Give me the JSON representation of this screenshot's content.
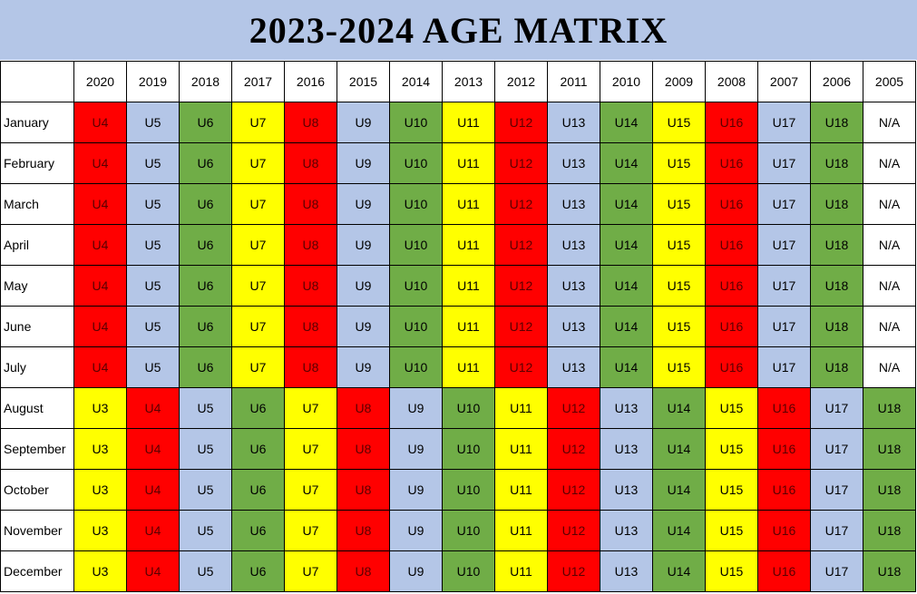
{
  "title": "2023-2024 AGE MATRIX",
  "colors": {
    "red": "#ff0000",
    "blue": "#b4c6e7",
    "green": "#70ad47",
    "yellow": "#ffff00",
    "none": "#ffffff"
  },
  "years": [
    "2020",
    "2019",
    "2018",
    "2017",
    "2016",
    "2015",
    "2014",
    "2013",
    "2012",
    "2011",
    "2010",
    "2009",
    "2008",
    "2007",
    "2006",
    "2005"
  ],
  "rows": [
    {
      "month": "January",
      "cells": [
        [
          "U4",
          "red"
        ],
        [
          "U5",
          "blue"
        ],
        [
          "U6",
          "green"
        ],
        [
          "U7",
          "yellow"
        ],
        [
          "U8",
          "red"
        ],
        [
          "U9",
          "blue"
        ],
        [
          "U10",
          "green"
        ],
        [
          "U11",
          "yellow"
        ],
        [
          "U12",
          "red"
        ],
        [
          "U13",
          "blue"
        ],
        [
          "U14",
          "green"
        ],
        [
          "U15",
          "yellow"
        ],
        [
          "U16",
          "red"
        ],
        [
          "U17",
          "blue"
        ],
        [
          "U18",
          "green"
        ],
        [
          "N/A",
          "none"
        ]
      ]
    },
    {
      "month": "February",
      "cells": [
        [
          "U4",
          "red"
        ],
        [
          "U5",
          "blue"
        ],
        [
          "U6",
          "green"
        ],
        [
          "U7",
          "yellow"
        ],
        [
          "U8",
          "red"
        ],
        [
          "U9",
          "blue"
        ],
        [
          "U10",
          "green"
        ],
        [
          "U11",
          "yellow"
        ],
        [
          "U12",
          "red"
        ],
        [
          "U13",
          "blue"
        ],
        [
          "U14",
          "green"
        ],
        [
          "U15",
          "yellow"
        ],
        [
          "U16",
          "red"
        ],
        [
          "U17",
          "blue"
        ],
        [
          "U18",
          "green"
        ],
        [
          "N/A",
          "none"
        ]
      ]
    },
    {
      "month": "March",
      "cells": [
        [
          "U4",
          "red"
        ],
        [
          "U5",
          "blue"
        ],
        [
          "U6",
          "green"
        ],
        [
          "U7",
          "yellow"
        ],
        [
          "U8",
          "red"
        ],
        [
          "U9",
          "blue"
        ],
        [
          "U10",
          "green"
        ],
        [
          "U11",
          "yellow"
        ],
        [
          "U12",
          "red"
        ],
        [
          "U13",
          "blue"
        ],
        [
          "U14",
          "green"
        ],
        [
          "U15",
          "yellow"
        ],
        [
          "U16",
          "red"
        ],
        [
          "U17",
          "blue"
        ],
        [
          "U18",
          "green"
        ],
        [
          "N/A",
          "none"
        ]
      ]
    },
    {
      "month": "April",
      "cells": [
        [
          "U4",
          "red"
        ],
        [
          "U5",
          "blue"
        ],
        [
          "U6",
          "green"
        ],
        [
          "U7",
          "yellow"
        ],
        [
          "U8",
          "red"
        ],
        [
          "U9",
          "blue"
        ],
        [
          "U10",
          "green"
        ],
        [
          "U11",
          "yellow"
        ],
        [
          "U12",
          "red"
        ],
        [
          "U13",
          "blue"
        ],
        [
          "U14",
          "green"
        ],
        [
          "U15",
          "yellow"
        ],
        [
          "U16",
          "red"
        ],
        [
          "U17",
          "blue"
        ],
        [
          "U18",
          "green"
        ],
        [
          "N/A",
          "none"
        ]
      ]
    },
    {
      "month": "May",
      "cells": [
        [
          "U4",
          "red"
        ],
        [
          "U5",
          "blue"
        ],
        [
          "U6",
          "green"
        ],
        [
          "U7",
          "yellow"
        ],
        [
          "U8",
          "red"
        ],
        [
          "U9",
          "blue"
        ],
        [
          "U10",
          "green"
        ],
        [
          "U11",
          "yellow"
        ],
        [
          "U12",
          "red"
        ],
        [
          "U13",
          "blue"
        ],
        [
          "U14",
          "green"
        ],
        [
          "U15",
          "yellow"
        ],
        [
          "U16",
          "red"
        ],
        [
          "U17",
          "blue"
        ],
        [
          "U18",
          "green"
        ],
        [
          "N/A",
          "none"
        ]
      ]
    },
    {
      "month": "June",
      "cells": [
        [
          "U4",
          "red"
        ],
        [
          "U5",
          "blue"
        ],
        [
          "U6",
          "green"
        ],
        [
          "U7",
          "yellow"
        ],
        [
          "U8",
          "red"
        ],
        [
          "U9",
          "blue"
        ],
        [
          "U10",
          "green"
        ],
        [
          "U11",
          "yellow"
        ],
        [
          "U12",
          "red"
        ],
        [
          "U13",
          "blue"
        ],
        [
          "U14",
          "green"
        ],
        [
          "U15",
          "yellow"
        ],
        [
          "U16",
          "red"
        ],
        [
          "U17",
          "blue"
        ],
        [
          "U18",
          "green"
        ],
        [
          "N/A",
          "none"
        ]
      ]
    },
    {
      "month": "July",
      "cells": [
        [
          "U4",
          "red"
        ],
        [
          "U5",
          "blue"
        ],
        [
          "U6",
          "green"
        ],
        [
          "U7",
          "yellow"
        ],
        [
          "U8",
          "red"
        ],
        [
          "U9",
          "blue"
        ],
        [
          "U10",
          "green"
        ],
        [
          "U11",
          "yellow"
        ],
        [
          "U12",
          "red"
        ],
        [
          "U13",
          "blue"
        ],
        [
          "U14",
          "green"
        ],
        [
          "U15",
          "yellow"
        ],
        [
          "U16",
          "red"
        ],
        [
          "U17",
          "blue"
        ],
        [
          "U18",
          "green"
        ],
        [
          "N/A",
          "none"
        ]
      ]
    },
    {
      "month": "August",
      "cells": [
        [
          "U3",
          "yellow"
        ],
        [
          "U4",
          "red"
        ],
        [
          "U5",
          "blue"
        ],
        [
          "U6",
          "green"
        ],
        [
          "U7",
          "yellow"
        ],
        [
          "U8",
          "red"
        ],
        [
          "U9",
          "blue"
        ],
        [
          "U10",
          "green"
        ],
        [
          "U11",
          "yellow"
        ],
        [
          "U12",
          "red"
        ],
        [
          "U13",
          "blue"
        ],
        [
          "U14",
          "green"
        ],
        [
          "U15",
          "yellow"
        ],
        [
          "U16",
          "red"
        ],
        [
          "U17",
          "blue"
        ],
        [
          "U18",
          "green"
        ]
      ]
    },
    {
      "month": "September",
      "cells": [
        [
          "U3",
          "yellow"
        ],
        [
          "U4",
          "red"
        ],
        [
          "U5",
          "blue"
        ],
        [
          "U6",
          "green"
        ],
        [
          "U7",
          "yellow"
        ],
        [
          "U8",
          "red"
        ],
        [
          "U9",
          "blue"
        ],
        [
          "U10",
          "green"
        ],
        [
          "U11",
          "yellow"
        ],
        [
          "U12",
          "red"
        ],
        [
          "U13",
          "blue"
        ],
        [
          "U14",
          "green"
        ],
        [
          "U15",
          "yellow"
        ],
        [
          "U16",
          "red"
        ],
        [
          "U17",
          "blue"
        ],
        [
          "U18",
          "green"
        ]
      ]
    },
    {
      "month": "October",
      "cells": [
        [
          "U3",
          "yellow"
        ],
        [
          "U4",
          "red"
        ],
        [
          "U5",
          "blue"
        ],
        [
          "U6",
          "green"
        ],
        [
          "U7",
          "yellow"
        ],
        [
          "U8",
          "red"
        ],
        [
          "U9",
          "blue"
        ],
        [
          "U10",
          "green"
        ],
        [
          "U11",
          "yellow"
        ],
        [
          "U12",
          "red"
        ],
        [
          "U13",
          "blue"
        ],
        [
          "U14",
          "green"
        ],
        [
          "U15",
          "yellow"
        ],
        [
          "U16",
          "red"
        ],
        [
          "U17",
          "blue"
        ],
        [
          "U18",
          "green"
        ]
      ]
    },
    {
      "month": "November",
      "cells": [
        [
          "U3",
          "yellow"
        ],
        [
          "U4",
          "red"
        ],
        [
          "U5",
          "blue"
        ],
        [
          "U6",
          "green"
        ],
        [
          "U7",
          "yellow"
        ],
        [
          "U8",
          "red"
        ],
        [
          "U9",
          "blue"
        ],
        [
          "U10",
          "green"
        ],
        [
          "U11",
          "yellow"
        ],
        [
          "U12",
          "red"
        ],
        [
          "U13",
          "blue"
        ],
        [
          "U14",
          "green"
        ],
        [
          "U15",
          "yellow"
        ],
        [
          "U16",
          "red"
        ],
        [
          "U17",
          "blue"
        ],
        [
          "U18",
          "green"
        ]
      ]
    },
    {
      "month": "December",
      "cells": [
        [
          "U3",
          "yellow"
        ],
        [
          "U4",
          "red"
        ],
        [
          "U5",
          "blue"
        ],
        [
          "U6",
          "green"
        ],
        [
          "U7",
          "yellow"
        ],
        [
          "U8",
          "red"
        ],
        [
          "U9",
          "blue"
        ],
        [
          "U10",
          "green"
        ],
        [
          "U11",
          "yellow"
        ],
        [
          "U12",
          "red"
        ],
        [
          "U13",
          "blue"
        ],
        [
          "U14",
          "green"
        ],
        [
          "U15",
          "yellow"
        ],
        [
          "U16",
          "red"
        ],
        [
          "U17",
          "blue"
        ],
        [
          "U18",
          "green"
        ]
      ]
    }
  ]
}
